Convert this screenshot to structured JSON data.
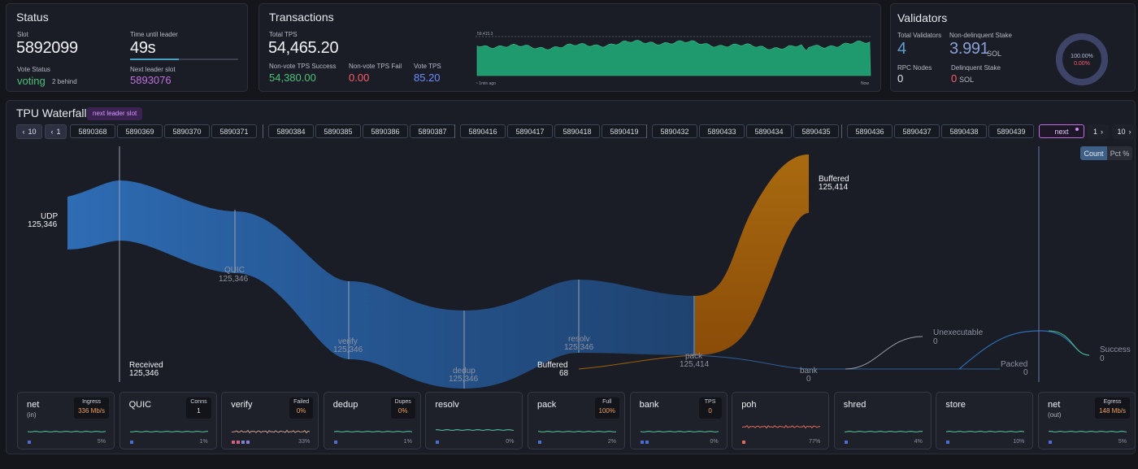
{
  "status": {
    "title": "Status",
    "slot_label": "Slot",
    "slot_value": "5892099",
    "time_label": "Time until leader",
    "time_value": "49s",
    "time_progress": 0.45,
    "vote_label": "Vote Status",
    "vote_value": "voting",
    "vote_behind": "2 behind",
    "next_label": "Next leader slot",
    "next_value": "5893076"
  },
  "transactions": {
    "title": "Transactions",
    "total_tps_label": "Total TPS",
    "total_tps_value": "54,465.20",
    "success_label": "Non-vote TPS Success",
    "success_value": "54,380.00",
    "fail_label": "Non-vote TPS Fail",
    "fail_value": "0.00",
    "vote_tps_label": "Vote TPS",
    "vote_tps_value": "85.20",
    "chart_max_label": "59,415.3",
    "chart_start_label": "~ 1min ago",
    "chart_end_label": "Now"
  },
  "validators": {
    "title": "Validators",
    "total_label": "Total Validators",
    "total_value": "4",
    "nondelinquent_label": "Non-delinquent Stake",
    "nondelinquent_value": "3.991",
    "nondelinquent_unit": "SOL",
    "rpc_label": "RPC Nodes",
    "rpc_value": "0",
    "delinquent_label": "Delinquent Stake",
    "delinquent_value": "0",
    "delinquent_unit": "SOL",
    "donut_pct_top": "100.00%",
    "donut_pct_bottom": "0.00%",
    "donut_fraction": 1.0
  },
  "waterfall": {
    "title": "TPU Waterfall",
    "badge": "next leader slot",
    "nav_back10": "10",
    "nav_back1": "1",
    "slot_groups": [
      [
        "5890368",
        "5890369",
        "5890370",
        "5890371"
      ],
      [
        "5890384",
        "5890385",
        "5890386",
        "5890387"
      ],
      [
        "5890416",
        "5890417",
        "5890418",
        "5890419"
      ],
      [
        "5890432",
        "5890433",
        "5890434",
        "5890435"
      ],
      [
        "5890436",
        "5890437",
        "5890438",
        "5890439"
      ]
    ],
    "next_label": "next",
    "nav_fwd1": "1",
    "nav_fwd10": "10",
    "toggle_count": "Count",
    "toggle_pct": "Pct %",
    "stages": {
      "udp": {
        "name": "UDP",
        "value": "125,346"
      },
      "received": {
        "name": "Received",
        "value": "125,346"
      },
      "quic": {
        "name": "QUIC",
        "value": "125,346"
      },
      "verify": {
        "name": "verify",
        "value": "125,346"
      },
      "dedup": {
        "name": "dedup",
        "value": "125,346"
      },
      "resolv": {
        "name": "resolv",
        "value": "125,346"
      },
      "buffered_small": {
        "name": "Buffered",
        "value": "68"
      },
      "pack": {
        "name": "pack",
        "value": "125,414"
      },
      "buffered_big": {
        "name": "Buffered",
        "value": "125,414"
      },
      "bank": {
        "name": "bank",
        "value": "0"
      },
      "unexecutable": {
        "name": "Unexecutable",
        "value": "0"
      },
      "packed": {
        "name": "Packed",
        "value": "0"
      },
      "success": {
        "name": "Success",
        "value": "0"
      }
    }
  },
  "cards": [
    {
      "name": "net",
      "sub": "(in)",
      "metric_label": "Ingress",
      "metric_value": "336 Mb/s",
      "metric_color": "#f0a060",
      "pct": "5%",
      "spark_color": "#58c8a0",
      "dots": [
        "#4f6fd0"
      ]
    },
    {
      "name": "QUIC",
      "sub": "",
      "metric_label": "Conns",
      "metric_value": "1",
      "metric_color": "#e6e8ee",
      "pct": "1%",
      "spark_color": "#58c8a0",
      "dots": [
        "#4f6fd0"
      ]
    },
    {
      "name": "verify",
      "sub": "",
      "metric_label": "Failed",
      "metric_value": "0%",
      "metric_color": "#f0a060",
      "pct": "33%",
      "spark_color": "#c8a090",
      "dots": [
        "#d06080",
        "#d06080",
        "#8080d0",
        "#8080d0"
      ]
    },
    {
      "name": "dedup",
      "sub": "",
      "metric_label": "Dupes",
      "metric_value": "0%",
      "metric_color": "#f0a060",
      "pct": "1%",
      "spark_color": "#58c8a0",
      "dots": [
        "#4f6fd0"
      ]
    },
    {
      "name": "resolv",
      "sub": "",
      "metric_label": "",
      "metric_value": "",
      "metric_color": "#e6e8ee",
      "pct": "0%",
      "spark_color": "#58c8a0",
      "dots": [
        "#4f6fd0"
      ]
    },
    {
      "name": "pack",
      "sub": "",
      "metric_label": "Full",
      "metric_value": "100%",
      "metric_color": "#f0a060",
      "pct": "2%",
      "spark_color": "#58c8a0",
      "dots": [
        "#4f6fd0"
      ]
    },
    {
      "name": "bank",
      "sub": "",
      "metric_label": "TPS",
      "metric_value": "0",
      "metric_color": "#f0a060",
      "pct": "0%",
      "spark_color": "#58c8a0",
      "dots": [
        "#4f6fd0",
        "#4f6fd0"
      ]
    },
    {
      "name": "poh",
      "sub": "",
      "metric_label": "",
      "metric_value": "",
      "metric_color": "#e6e8ee",
      "pct": "77%",
      "spark_color": "#e06a5a",
      "dots": [
        "#e06a5a"
      ]
    },
    {
      "name": "shred",
      "sub": "",
      "metric_label": "",
      "metric_value": "",
      "metric_color": "#e6e8ee",
      "pct": "4%",
      "spark_color": "#58c8a0",
      "dots": [
        "#4f6fd0"
      ]
    },
    {
      "name": "store",
      "sub": "",
      "metric_label": "",
      "metric_value": "",
      "metric_color": "#e6e8ee",
      "pct": "10%",
      "spark_color": "#58c8a0",
      "dots": [
        "#4f6fd0"
      ]
    },
    {
      "name": "net",
      "sub": "(out)",
      "metric_label": "Egress",
      "metric_value": "148 Mb/s",
      "metric_color": "#f0a060",
      "pct": "5%",
      "spark_color": "#58c8a0",
      "dots": [
        "#4f6fd0"
      ]
    }
  ],
  "colors": {
    "accent_blue": "#2f6fb8",
    "accent_orange": "#a0620a",
    "tps_green": "#1f9a6e",
    "purple": "#c070e0",
    "success_green": "#4cc07a",
    "fail_red": "#ff5a6e"
  }
}
